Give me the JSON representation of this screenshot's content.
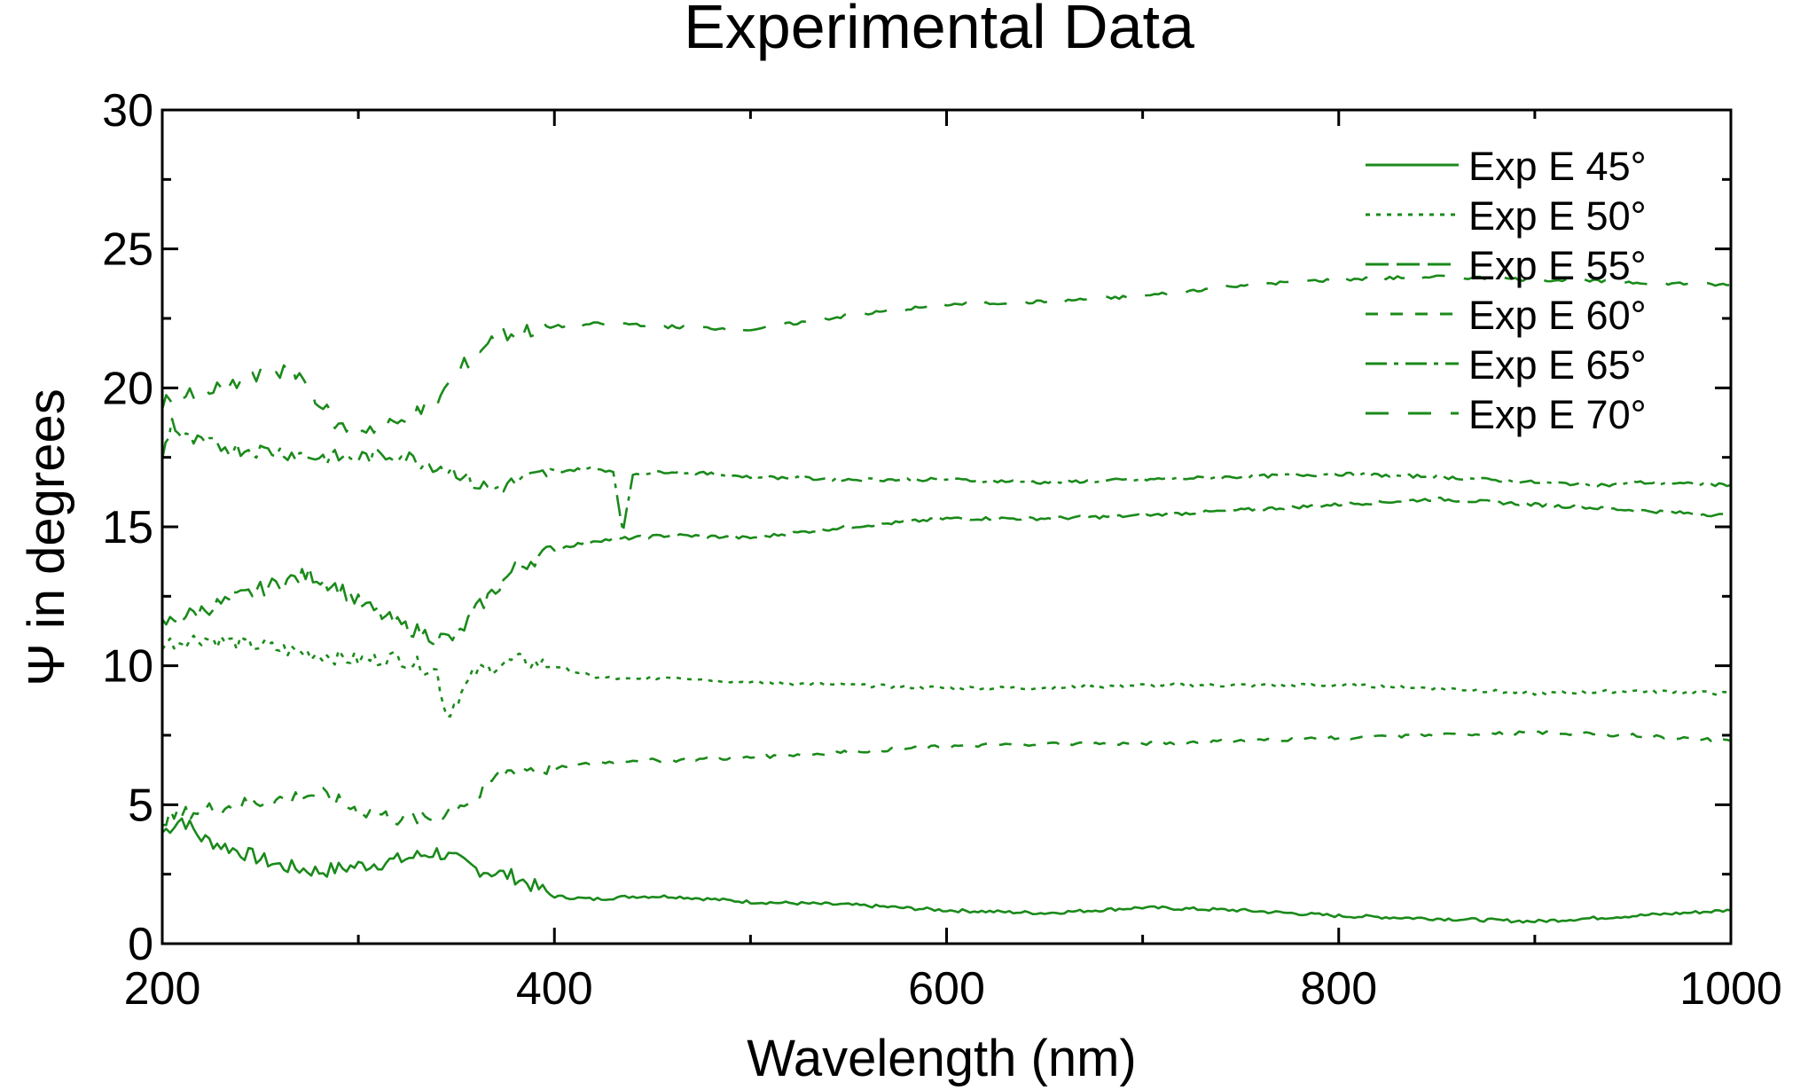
{
  "chart_data": {
    "type": "line",
    "title": "Experimental Data",
    "xlabel": "Wavelength (nm)",
    "ylabel": "Ψ in degrees",
    "xlim": [
      200,
      1000
    ],
    "ylim": [
      0,
      30
    ],
    "x_ticks": [
      200,
      400,
      600,
      800,
      1000
    ],
    "y_ticks": [
      0,
      5,
      10,
      15,
      20,
      25,
      30
    ],
    "grid": false,
    "legend_position": "top-right",
    "line_color": "#1a8a1a",
    "series": [
      {
        "name": "Exp E 45°",
        "dash": "solid",
        "x": [
          200,
          210,
          220,
          240,
          260,
          280,
          300,
          320,
          340,
          360,
          380,
          400,
          420,
          440,
          460,
          500,
          550,
          600,
          650,
          700,
          750,
          800,
          850,
          900,
          950,
          1000
        ],
        "y": [
          4.0,
          4.5,
          3.8,
          3.3,
          2.8,
          2.6,
          2.8,
          3.0,
          3.3,
          2.7,
          2.4,
          1.7,
          1.6,
          1.7,
          1.7,
          1.5,
          1.4,
          1.2,
          1.1,
          1.3,
          1.2,
          1.0,
          0.9,
          0.8,
          1.0,
          1.2
        ]
      },
      {
        "name": "Exp E 50°",
        "dash": "dot",
        "x": [
          200,
          220,
          240,
          260,
          280,
          300,
          320,
          340,
          345,
          360,
          380,
          400,
          420,
          440,
          460,
          500,
          550,
          600,
          650,
          700,
          750,
          800,
          850,
          900,
          950,
          1000
        ],
        "y": [
          10.8,
          11.0,
          10.8,
          10.6,
          10.4,
          10.2,
          10.3,
          9.8,
          8.2,
          9.8,
          10.2,
          10.0,
          9.6,
          9.5,
          9.6,
          9.4,
          9.3,
          9.2,
          9.2,
          9.3,
          9.3,
          9.3,
          9.2,
          9.0,
          9.1,
          9.0
        ]
      },
      {
        "name": "Exp E 55°",
        "dash": "longdash",
        "x": [
          200,
          220,
          240,
          260,
          275,
          290,
          300,
          320,
          340,
          350,
          360,
          380,
          400,
          420,
          440,
          460,
          500,
          550,
          600,
          650,
          700,
          750,
          800,
          850,
          900,
          950,
          1000
        ],
        "y": [
          11.5,
          12.0,
          12.5,
          13.0,
          13.3,
          12.8,
          12.3,
          11.5,
          11.0,
          11.0,
          12.0,
          13.5,
          14.2,
          14.5,
          14.6,
          14.7,
          14.6,
          15.0,
          15.3,
          15.3,
          15.4,
          15.6,
          15.8,
          16.0,
          15.8,
          15.6,
          15.4
        ]
      },
      {
        "name": "Exp E 60°",
        "dash": "dashed",
        "x": [
          200,
          220,
          240,
          260,
          280,
          300,
          320,
          340,
          350,
          360,
          370,
          380,
          400,
          420,
          440,
          460,
          500,
          550,
          600,
          650,
          700,
          750,
          800,
          850,
          900,
          950,
          1000
        ],
        "y": [
          4.5,
          4.8,
          5.0,
          5.2,
          5.4,
          4.8,
          4.5,
          4.5,
          5.0,
          5.2,
          6.0,
          6.3,
          6.3,
          6.5,
          6.6,
          6.6,
          6.7,
          6.9,
          7.1,
          7.2,
          7.2,
          7.3,
          7.4,
          7.5,
          7.6,
          7.5,
          7.3
        ]
      },
      {
        "name": "Exp E 65°",
        "dash": "dashdot",
        "x": [
          200,
          205,
          210,
          220,
          240,
          260,
          280,
          300,
          320,
          340,
          350,
          360,
          370,
          380,
          400,
          420,
          430,
          435,
          440,
          460,
          500,
          550,
          600,
          650,
          700,
          750,
          800,
          850,
          900,
          940,
          950,
          1000
        ],
        "y": [
          17.5,
          18.8,
          18.2,
          18.0,
          17.8,
          17.7,
          17.5,
          17.5,
          17.6,
          17.2,
          17.0,
          16.5,
          16.4,
          16.6,
          17.0,
          17.1,
          17.0,
          14.8,
          16.9,
          17.0,
          16.8,
          16.7,
          16.7,
          16.6,
          16.7,
          16.8,
          16.9,
          16.8,
          16.6,
          16.5,
          16.6,
          16.5
        ]
      },
      {
        "name": "Exp E 70°",
        "dash": "longgap",
        "x": [
          200,
          220,
          240,
          260,
          270,
          280,
          290,
          300,
          320,
          340,
          350,
          360,
          370,
          380,
          400,
          420,
          440,
          460,
          500,
          550,
          600,
          650,
          700,
          750,
          800,
          850,
          900,
          950,
          1000
        ],
        "y": [
          19.5,
          19.8,
          20.2,
          20.6,
          20.5,
          19.5,
          18.6,
          18.5,
          18.7,
          19.5,
          20.5,
          21.3,
          21.8,
          22.0,
          22.2,
          22.3,
          22.3,
          22.2,
          22.1,
          22.6,
          23.0,
          23.1,
          23.3,
          23.7,
          23.9,
          24.0,
          23.9,
          23.8,
          23.7
        ]
      }
    ]
  }
}
